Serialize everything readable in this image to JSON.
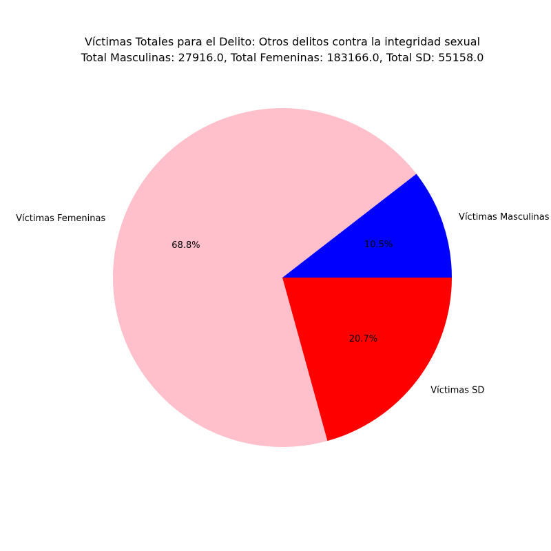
{
  "chart_data": {
    "type": "pie",
    "title": "Víctimas Totales para el Delito: Otros delitos contra la integridad sexual",
    "subtitle": "Total Masculinas: 27916.0, Total Femeninas: 183166.0, Total SD: 55158.0",
    "categories": [
      "Víctimas Masculinas",
      "Víctimas Femeninas",
      "Víctimas SD"
    ],
    "values": [
      27916.0,
      183166.0,
      55158.0
    ],
    "percent_labels": [
      "10.5%",
      "68.8%",
      "20.7%"
    ],
    "colors": [
      "#0000ff",
      "#ffc0cb",
      "#ff0000"
    ],
    "start_angle_deg": 0,
    "direction": "counterclockwise",
    "legend": "none"
  }
}
